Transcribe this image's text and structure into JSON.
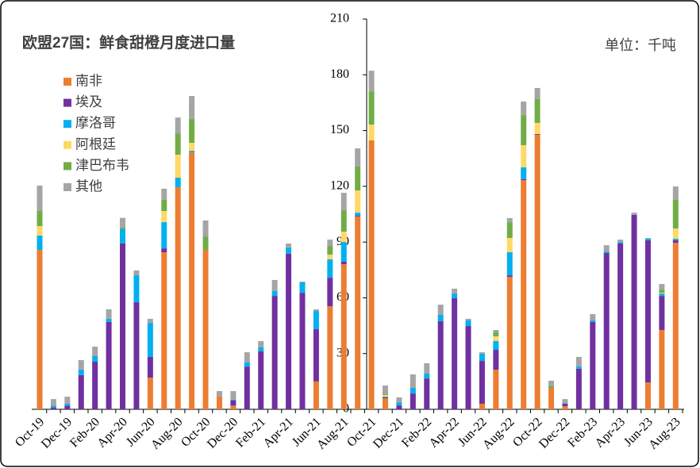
{
  "chart_data": {
    "type": "stacked-bar",
    "title": "欧盟27国：鲜食甜橙月度进口量",
    "unit": "单位：千吨",
    "categories": [
      "Oct-19",
      null,
      "Dec-19",
      null,
      "Feb-20",
      null,
      "Apr-20",
      null,
      "Jun-20",
      null,
      "Aug-20",
      null,
      "Oct-20",
      null,
      "Dec-20",
      null,
      "Feb-21",
      null,
      "Apr-21",
      null,
      "Jun-21",
      null,
      "Aug-21",
      null,
      "Oct-21",
      null,
      "Dec-21",
      null,
      "Feb-22",
      null,
      "Apr-22",
      null,
      "Jun-22",
      null,
      "Aug-22",
      null,
      "Oct-22",
      null,
      "Dec-22",
      null,
      "Feb-23",
      null,
      "Apr-23",
      null,
      "Jun-23",
      null,
      "Aug-23"
    ],
    "series": [
      {
        "name": "南非",
        "color": "#ED7D31",
        "values": [
          85.8,
          0,
          0,
          0,
          0,
          0,
          0,
          0,
          17,
          84.5,
          119.5,
          138.3,
          85.8,
          6.8,
          2,
          0,
          0,
          0,
          0,
          0,
          15,
          55.5,
          78.1,
          103.7,
          144.7,
          6,
          0,
          0,
          0,
          0,
          0,
          0,
          3,
          21.3,
          71.3,
          123.3,
          147.7,
          11.5,
          1.7,
          0,
          0,
          0,
          0,
          0,
          14.5,
          42.7,
          89.6
        ]
      },
      {
        "name": "埃及",
        "color": "#7030A0",
        "values": [
          0,
          1,
          2,
          18.4,
          25.6,
          47,
          89.2,
          57.6,
          11.2,
          2.1,
          0,
          0,
          0,
          0,
          2.7,
          23,
          31.2,
          61,
          83.7,
          62.7,
          28.1,
          15.3,
          1.3,
          0.4,
          0,
          0.4,
          2.1,
          8.5,
          16.6,
          47.4,
          59.8,
          44.8,
          23,
          10.7,
          0.8,
          0.5,
          0.4,
          0,
          1.3,
          21.8,
          47,
          84.1,
          89.2,
          104.6,
          76.4,
          18.3,
          1.3
        ]
      },
      {
        "name": "摩洛哥",
        "color": "#00B0F0",
        "values": [
          7.7,
          1,
          1,
          2.9,
          3,
          1.7,
          7.7,
          14.5,
          18.3,
          14.1,
          5.1,
          0.8,
          0,
          0,
          0.5,
          2.2,
          2.1,
          2.6,
          3.3,
          5.6,
          9.8,
          9.9,
          10.6,
          1.7,
          0,
          0.4,
          1.7,
          3,
          2.6,
          3.4,
          2.5,
          3,
          3.9,
          4.7,
          12.4,
          6.4,
          0,
          0,
          0.3,
          1.2,
          0.8,
          0.8,
          0.8,
          0,
          0.9,
          1.3,
          0.9
        ]
      },
      {
        "name": "阿根廷",
        "color": "#FFD966",
        "values": [
          5.1,
          0,
          0,
          0,
          0,
          0,
          0,
          0,
          0,
          6,
          12.4,
          4.3,
          0,
          0,
          0,
          0,
          0,
          0,
          0,
          0,
          0,
          2.5,
          5.6,
          12,
          8.5,
          0.9,
          0,
          0,
          0,
          0,
          0,
          0,
          0,
          2.6,
          7.7,
          11.9,
          6,
          0,
          0,
          0,
          0,
          0,
          0,
          0,
          0,
          0.4,
          5.5
        ]
      },
      {
        "name": "津巴布韦",
        "color": "#70AD47",
        "values": [
          8.1,
          0,
          0,
          0,
          0,
          0,
          1,
          0,
          0,
          6,
          11.5,
          12.8,
          7.2,
          0,
          0,
          0,
          0,
          0,
          0,
          0,
          0,
          4.7,
          11.5,
          12.8,
          17.9,
          0.4,
          0,
          0,
          0,
          0,
          0,
          0,
          0,
          2.1,
          8.5,
          16.2,
          12.8,
          0.9,
          0,
          0,
          0,
          0,
          0,
          0,
          0,
          1.7,
          15.4
        ]
      },
      {
        "name": "其他",
        "color": "#A5A5A5",
        "values": [
          13.7,
          3.5,
          3.8,
          5.2,
          5.1,
          5.1,
          5.1,
          2.6,
          2.2,
          6,
          8.5,
          12.4,
          8.6,
          3,
          4.6,
          5.5,
          3.4,
          6,
          2.2,
          0.4,
          0.9,
          3.4,
          9.4,
          9.8,
          11.1,
          4.7,
          2.6,
          7.3,
          5.6,
          5.5,
          2.6,
          0.9,
          0.8,
          1.3,
          2.2,
          7.3,
          6,
          3,
          2.2,
          5.2,
          3.4,
          3.4,
          1.3,
          1.2,
          0.4,
          3,
          7.2
        ]
      }
    ],
    "ylim": [
      0,
      210
    ],
    "yticks": [
      0,
      30,
      60,
      90,
      120,
      150,
      180,
      210
    ],
    "legend": "upper-left"
  }
}
